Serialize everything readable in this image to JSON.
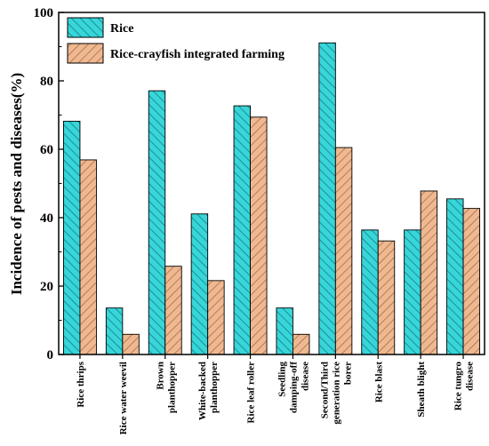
{
  "chart_data": {
    "type": "bar",
    "title": "",
    "xlabel": "",
    "ylabel": "Incidence of pests and diseases(%)",
    "ylim": [
      0,
      100
    ],
    "yticks": [
      0,
      20,
      40,
      60,
      80,
      100
    ],
    "grid": false,
    "legend_position": "top-left",
    "categories": [
      [
        "Rice thrips"
      ],
      [
        "Rice water weevil"
      ],
      [
        "Brown",
        "planthopper"
      ],
      [
        "White-backed",
        "planthopper"
      ],
      [
        "Rice leaf roller"
      ],
      [
        "Seedling",
        "damping-off",
        "disease"
      ],
      [
        "Second/Third",
        "generation rice",
        "borer"
      ],
      [
        "Rice blast"
      ],
      [
        "Sheath blight"
      ],
      [
        "Rice tungro",
        "disease"
      ]
    ],
    "series": [
      {
        "name": "Rice",
        "color": "#36d6d9",
        "hatch_color": "#1a6e78",
        "values": [
          68.2,
          13.6,
          77.1,
          41.1,
          72.7,
          13.6,
          91.1,
          36.4,
          36.4,
          45.5
        ]
      },
      {
        "name": "Rice-crayfish integrated farming",
        "color": "#f0b890",
        "hatch_color": "#9a6540",
        "values": [
          56.9,
          5.9,
          25.8,
          21.6,
          69.4,
          5.9,
          60.5,
          33.2,
          47.8,
          42.7
        ]
      }
    ]
  }
}
